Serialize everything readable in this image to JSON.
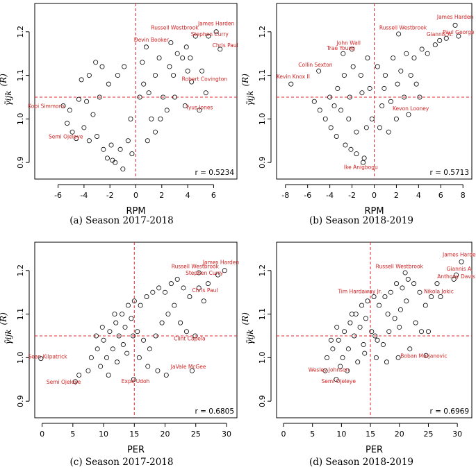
{
  "chart_data": [
    {
      "type": "scatter",
      "panel": "a",
      "caption": "(a) Season 2017-2018",
      "xlabel": "RPM",
      "ylabel": "γ̃ijk",
      "ylabel_sup": "(R)",
      "xlim": [
        -7.8,
        7.8
      ],
      "ylim": [
        0.862,
        1.265
      ],
      "xticks": [
        -6,
        -4,
        -2,
        0,
        2,
        4,
        6
      ],
      "yticks": [
        0.9,
        1.0,
        1.1,
        1.2
      ],
      "ytick_labels": [
        "0.9",
        "1.0",
        "1.1",
        "1.2"
      ],
      "vline": 0,
      "hline": 1.05,
      "r_label": "r = 0.5234",
      "annotations": [
        {
          "text": "James Harden",
          "x": 6.2,
          "y": 1.215,
          "anchor": "middle"
        },
        {
          "text": "Russell Westbrook",
          "x": 3.0,
          "y": 1.205,
          "anchor": "middle"
        },
        {
          "text": "Stephen Curry",
          "x": 5.7,
          "y": 1.19,
          "anchor": "middle"
        },
        {
          "text": "Devin Booker",
          "x": 1.2,
          "y": 1.177,
          "anchor": "middle"
        },
        {
          "text": "Chris Paul",
          "x": 6.9,
          "y": 1.165,
          "anchor": "middle"
        },
        {
          "text": "Robert Covington",
          "x": 5.3,
          "y": 1.087,
          "anchor": "middle"
        },
        {
          "text": "Kobi Simmons",
          "x": -6.9,
          "y": 1.025,
          "anchor": "middle"
        },
        {
          "text": "Tyus Jones",
          "x": 4.9,
          "y": 1.022,
          "anchor": "middle"
        },
        {
          "text": "Semi Ojeleye",
          "x": -5.4,
          "y": 0.955,
          "anchor": "middle"
        }
      ],
      "points": [
        [
          6.2,
          1.2
        ],
        [
          4.6,
          1.19
        ],
        [
          5.6,
          1.19
        ],
        [
          0.8,
          1.165
        ],
        [
          6.5,
          1.16
        ],
        [
          4.3,
          1.085
        ],
        [
          -5.6,
          1.03
        ],
        [
          4.9,
          1.02
        ],
        [
          -4.6,
          0.955
        ],
        [
          -1.6,
          0.9
        ],
        [
          -1.8,
          0.905
        ],
        [
          -1.0,
          0.885
        ],
        [
          -2.2,
          0.91
        ],
        [
          1.8,
          1.14
        ],
        [
          2.6,
          1.12
        ],
        [
          3.2,
          1.15
        ],
        [
          3.6,
          1.14
        ],
        [
          2.9,
          1.1
        ],
        [
          1.5,
          1.1
        ],
        [
          -3.6,
          1.1
        ],
        [
          -3.1,
          1.13
        ],
        [
          -2.6,
          1.12
        ],
        [
          -4.2,
          1.09
        ],
        [
          -4.4,
          1.045
        ],
        [
          -5.1,
          1.02
        ],
        [
          -5.3,
          0.99
        ],
        [
          -4.9,
          0.97
        ],
        [
          -4.0,
          0.98
        ],
        [
          -3.6,
          0.95
        ],
        [
          -3.0,
          0.96
        ],
        [
          -2.5,
          0.93
        ],
        [
          -1.9,
          0.94
        ],
        [
          0.5,
          1.13
        ],
        [
          1.0,
          1.06
        ],
        [
          2.1,
          1.05
        ],
        [
          3.0,
          1.05
        ],
        [
          2.4,
          1.02
        ],
        [
          1.2,
          1.0
        ],
        [
          1.5,
          0.97
        ],
        [
          -0.4,
          1.0
        ],
        [
          -0.6,
          0.95
        ],
        [
          -1.2,
          0.93
        ],
        [
          -3.3,
          1.01
        ],
        [
          -2.8,
          1.05
        ],
        [
          -2.1,
          1.08
        ],
        [
          -1.4,
          1.1
        ],
        [
          -0.9,
          1.12
        ],
        [
          0.3,
          1.05
        ],
        [
          0.6,
          1.08
        ],
        [
          4.0,
          1.11
        ],
        [
          4.2,
          1.14
        ],
        [
          5.1,
          1.11
        ],
        [
          3.8,
          1.03
        ],
        [
          5.4,
          1.06
        ],
        [
          2.7,
          1.175
        ],
        [
          3.9,
          1.165
        ],
        [
          1.9,
          1.0
        ],
        [
          0.9,
          0.95
        ],
        [
          -0.3,
          0.92
        ],
        [
          -3.8,
          1.04
        ]
      ]
    },
    {
      "type": "scatter",
      "panel": "b",
      "caption": "(b) Season 2018-2019",
      "xlabel": "RPM",
      "ylabel": "γ̃ijk",
      "ylabel_sup": "(R)",
      "xlim": [
        -8.8,
        8.8
      ],
      "ylim": [
        0.862,
        1.265
      ],
      "xticks": [
        -8,
        -6,
        -4,
        -2,
        0,
        2,
        4,
        6,
        8
      ],
      "yticks": [
        0.9,
        1.0,
        1.1,
        1.2
      ],
      "ytick_labels": [
        "0.9",
        "1.0",
        "1.1",
        "1.2"
      ],
      "vline": 0,
      "hline": 1.05,
      "r_label": "r = 0.5713",
      "annotations": [
        {
          "text": "James Harden",
          "x": 7.3,
          "y": 1.23,
          "anchor": "middle"
        },
        {
          "text": "Russell Westbrook",
          "x": 2.6,
          "y": 1.205,
          "anchor": "middle"
        },
        {
          "text": "Paul George",
          "x": 7.6,
          "y": 1.195,
          "anchor": "middle"
        },
        {
          "text": "Giannis A.",
          "x": 5.9,
          "y": 1.19,
          "anchor": "middle"
        },
        {
          "text": "John Wall",
          "x": -2.3,
          "y": 1.17,
          "anchor": "middle"
        },
        {
          "text": "Trae Young",
          "x": -3.0,
          "y": 1.158,
          "anchor": "middle"
        },
        {
          "text": "Collin Sexton",
          "x": -5.3,
          "y": 1.12,
          "anchor": "middle"
        },
        {
          "text": "Kevin Knox II",
          "x": -7.3,
          "y": 1.093,
          "anchor": "middle"
        },
        {
          "text": "Kevon Looney",
          "x": 3.3,
          "y": 1.02,
          "anchor": "middle"
        },
        {
          "text": "Ike Anigbogu",
          "x": -1.2,
          "y": 0.885,
          "anchor": "middle"
        }
      ],
      "points": [
        [
          7.3,
          1.215
        ],
        [
          6.5,
          1.185
        ],
        [
          7.6,
          1.19
        ],
        [
          5.9,
          1.18
        ],
        [
          2.2,
          1.195
        ],
        [
          -2.0,
          1.16
        ],
        [
          -2.8,
          1.15
        ],
        [
          -5.0,
          1.11
        ],
        [
          -7.5,
          1.08
        ],
        [
          3.1,
          1.01
        ],
        [
          -1.0,
          0.9
        ],
        [
          -0.9,
          0.91
        ],
        [
          -1.6,
          0.92
        ],
        [
          -2.1,
          0.93
        ],
        [
          -2.6,
          0.94
        ],
        [
          -3.4,
          0.96
        ],
        [
          -3.9,
          0.98
        ],
        [
          -4.4,
          1.0
        ],
        [
          -4.9,
          1.02
        ],
        [
          -5.4,
          1.04
        ],
        [
          -4.0,
          1.05
        ],
        [
          -3.3,
          1.07
        ],
        [
          -2.7,
          1.1
        ],
        [
          -1.9,
          1.12
        ],
        [
          -1.2,
          1.1
        ],
        [
          -0.6,
          1.14
        ],
        [
          0.3,
          1.12
        ],
        [
          1.0,
          1.1
        ],
        [
          1.7,
          1.14
        ],
        [
          2.4,
          1.11
        ],
        [
          2.9,
          1.15
        ],
        [
          3.6,
          1.14
        ],
        [
          4.3,
          1.16
        ],
        [
          4.8,
          1.15
        ],
        [
          5.5,
          1.17
        ],
        [
          3.8,
          1.08
        ],
        [
          4.1,
          1.05
        ],
        [
          2.7,
          1.05
        ],
        [
          1.5,
          1.04
        ],
        [
          0.7,
          1.03
        ],
        [
          -0.2,
          1.0
        ],
        [
          -0.7,
          0.98
        ],
        [
          -1.6,
          0.97
        ],
        [
          -2.3,
          1.0
        ],
        [
          -3.0,
          1.02
        ],
        [
          0.5,
          0.98
        ],
        [
          1.3,
          0.97
        ],
        [
          2.0,
          1.0
        ],
        [
          -1.1,
          1.06
        ],
        [
          -0.4,
          1.07
        ],
        [
          0.9,
          1.07
        ],
        [
          2.1,
          1.08
        ],
        [
          3.3,
          1.1
        ],
        [
          -2.2,
          1.05
        ],
        [
          -3.6,
          1.03
        ]
      ]
    },
    {
      "type": "scatter",
      "panel": "c",
      "caption": "(c) Season 2017-2018",
      "xlabel": "PER",
      "ylabel": "γ̃ijk",
      "ylabel_sup": "(R)",
      "xlim": [
        -1.2,
        31.7
      ],
      "ylim": [
        0.862,
        1.265
      ],
      "xticks": [
        0,
        5,
        10,
        15,
        20,
        25,
        30
      ],
      "yticks": [
        0.9,
        1.0,
        1.1,
        1.2
      ],
      "ytick_labels": [
        "0.9",
        "1.0",
        "1.1",
        "1.2"
      ],
      "vline": 15,
      "hline": 1.05,
      "r_label": "r = 0.6805",
      "annotations": [
        {
          "text": "James Harden",
          "x": 29.1,
          "y": 1.215,
          "anchor": "middle"
        },
        {
          "text": "Russell Westbrook",
          "x": 24.9,
          "y": 1.205,
          "anchor": "middle"
        },
        {
          "text": "Stephen Curry",
          "x": 26.4,
          "y": 1.19,
          "anchor": "middle"
        },
        {
          "text": "Chris Paul",
          "x": 26.5,
          "y": 1.15,
          "anchor": "middle"
        },
        {
          "text": "Clint Capela",
          "x": 24.0,
          "y": 1.04,
          "anchor": "middle"
        },
        {
          "text": "Sean Kilpatrick",
          "x": 0.9,
          "y": 0.998,
          "anchor": "middle"
        },
        {
          "text": "JaVale McGee",
          "x": 23.8,
          "y": 0.975,
          "anchor": "middle"
        },
        {
          "text": "Semi Ojeleye",
          "x": 3.5,
          "y": 0.94,
          "anchor": "middle"
        },
        {
          "text": "Expe Udoh",
          "x": 15.2,
          "y": 0.942,
          "anchor": "middle"
        }
      ],
      "points": [
        [
          29.7,
          1.2
        ],
        [
          25.5,
          1.195
        ],
        [
          28.6,
          1.19
        ],
        [
          25.5,
          1.16
        ],
        [
          24.9,
          1.05
        ],
        [
          -0.2,
          0.998
        ],
        [
          24.4,
          0.97
        ],
        [
          5.4,
          0.945
        ],
        [
          14.9,
          0.95
        ],
        [
          6.0,
          0.96
        ],
        [
          7.5,
          0.97
        ],
        [
          8.0,
          1.0
        ],
        [
          9.0,
          1.02
        ],
        [
          10.0,
          1.04
        ],
        [
          11.0,
          1.06
        ],
        [
          12.0,
          1.08
        ],
        [
          13.0,
          1.1
        ],
        [
          14.0,
          1.12
        ],
        [
          15.0,
          1.13
        ],
        [
          16.0,
          1.12
        ],
        [
          17.0,
          1.14
        ],
        [
          18.0,
          1.15
        ],
        [
          19.0,
          1.16
        ],
        [
          20.0,
          1.15
        ],
        [
          21.0,
          1.17
        ],
        [
          22.0,
          1.18
        ],
        [
          23.0,
          1.16
        ],
        [
          24.0,
          1.14
        ],
        [
          10.5,
          1.0
        ],
        [
          11.5,
          1.02
        ],
        [
          12.5,
          1.05
        ],
        [
          13.5,
          1.07
        ],
        [
          14.5,
          1.09
        ],
        [
          15.5,
          1.06
        ],
        [
          16.5,
          1.04
        ],
        [
          17.5,
          1.02
        ],
        [
          18.5,
          1.05
        ],
        [
          19.5,
          1.08
        ],
        [
          20.5,
          1.1
        ],
        [
          21.5,
          1.12
        ],
        [
          9.5,
          0.98
        ],
        [
          10.8,
          0.96
        ],
        [
          12.2,
          0.99
        ],
        [
          13.8,
          1.01
        ],
        [
          15.8,
          1.0
        ],
        [
          17.2,
          0.98
        ],
        [
          18.8,
          0.97
        ],
        [
          20.2,
          0.96
        ],
        [
          22.5,
          1.08
        ],
        [
          23.5,
          1.06
        ],
        [
          26.3,
          1.13
        ],
        [
          27.0,
          1.17
        ],
        [
          8.8,
          1.05
        ],
        [
          9.8,
          1.07
        ],
        [
          11.8,
          1.1
        ],
        [
          13.2,
          1.03
        ],
        [
          14.8,
          1.05
        ]
      ]
    },
    {
      "type": "scatter",
      "panel": "d",
      "caption": "(d) Season 2018-2019",
      "xlabel": "PER",
      "ylabel": "γ̃ijk",
      "ylabel_sup": "(R)",
      "xlim": [
        -1.2,
        32.5
      ],
      "ylim": [
        0.862,
        1.265
      ],
      "xticks": [
        0,
        5,
        10,
        15,
        20,
        25,
        30
      ],
      "yticks": [
        0.9,
        1.0,
        1.1,
        1.2
      ],
      "ytick_labels": [
        "0.9",
        "1.0",
        "1.1",
        "1.2"
      ],
      "vline": 15,
      "hline": 1.05,
      "r_label": "r = 0.6969",
      "annotations": [
        {
          "text": "James Harden",
          "x": 30.6,
          "y": 1.232,
          "anchor": "middle"
        },
        {
          "text": "Russell Westbrook",
          "x": 20.0,
          "y": 1.205,
          "anchor": "middle"
        },
        {
          "text": "Giannis A.",
          "x": 30.4,
          "y": 1.2,
          "anchor": "middle"
        },
        {
          "text": "Anthony Davis",
          "x": 29.8,
          "y": 1.182,
          "anchor": "middle"
        },
        {
          "text": "Nikola Jokic",
          "x": 26.8,
          "y": 1.148,
          "anchor": "middle"
        },
        {
          "text": "Tim Hardaway Jr.",
          "x": 13.2,
          "y": 1.148,
          "anchor": "middle"
        },
        {
          "text": "Boban Marjanovic",
          "x": 24.2,
          "y": 1.0,
          "anchor": "middle"
        },
        {
          "text": "Wesley Johnson",
          "x": 7.8,
          "y": 0.968,
          "anchor": "middle"
        },
        {
          "text": "Semi Ojeleye",
          "x": 9.5,
          "y": 0.942,
          "anchor": "middle"
        }
      ],
      "points": [
        [
          30.7,
          1.22
        ],
        [
          21.0,
          1.195
        ],
        [
          29.8,
          1.19
        ],
        [
          29.4,
          1.18
        ],
        [
          27.1,
          1.14
        ],
        [
          15.6,
          1.14
        ],
        [
          24.6,
          1.005
        ],
        [
          7.2,
          0.97
        ],
        [
          9.1,
          0.95
        ],
        [
          7.5,
          1.0
        ],
        [
          8.5,
          1.02
        ],
        [
          9.5,
          1.04
        ],
        [
          10.5,
          1.06
        ],
        [
          11.5,
          1.08
        ],
        [
          12.5,
          1.1
        ],
        [
          13.5,
          1.12
        ],
        [
          14.5,
          1.13
        ],
        [
          16.5,
          1.12
        ],
        [
          17.5,
          1.14
        ],
        [
          18.5,
          1.15
        ],
        [
          19.5,
          1.17
        ],
        [
          20.5,
          1.16
        ],
        [
          21.5,
          1.18
        ],
        [
          22.5,
          1.17
        ],
        [
          23.5,
          1.15
        ],
        [
          24.5,
          1.12
        ],
        [
          25.5,
          1.14
        ],
        [
          26.5,
          1.17
        ],
        [
          10.2,
          1.0
        ],
        [
          11.2,
          1.02
        ],
        [
          12.2,
          1.05
        ],
        [
          13.2,
          1.07
        ],
        [
          14.2,
          1.09
        ],
        [
          15.2,
          1.06
        ],
        [
          16.2,
          1.04
        ],
        [
          17.2,
          1.03
        ],
        [
          18.2,
          1.06
        ],
        [
          19.2,
          1.09
        ],
        [
          20.2,
          1.11
        ],
        [
          21.2,
          1.13
        ],
        [
          9.8,
          0.98
        ],
        [
          11.0,
          0.97
        ],
        [
          12.8,
          0.99
        ],
        [
          14.0,
          1.01
        ],
        [
          16.0,
          1.0
        ],
        [
          17.8,
          0.99
        ],
        [
          19.8,
          1.0
        ],
        [
          21.8,
          1.02
        ],
        [
          22.8,
          1.08
        ],
        [
          23.8,
          1.06
        ],
        [
          8.2,
          1.04
        ],
        [
          9.2,
          1.07
        ],
        [
          11.8,
          1.1
        ],
        [
          13.8,
          1.03
        ],
        [
          15.8,
          1.05
        ],
        [
          18.0,
          1.1
        ],
        [
          20.0,
          1.07
        ],
        [
          25.0,
          1.06
        ]
      ]
    }
  ]
}
